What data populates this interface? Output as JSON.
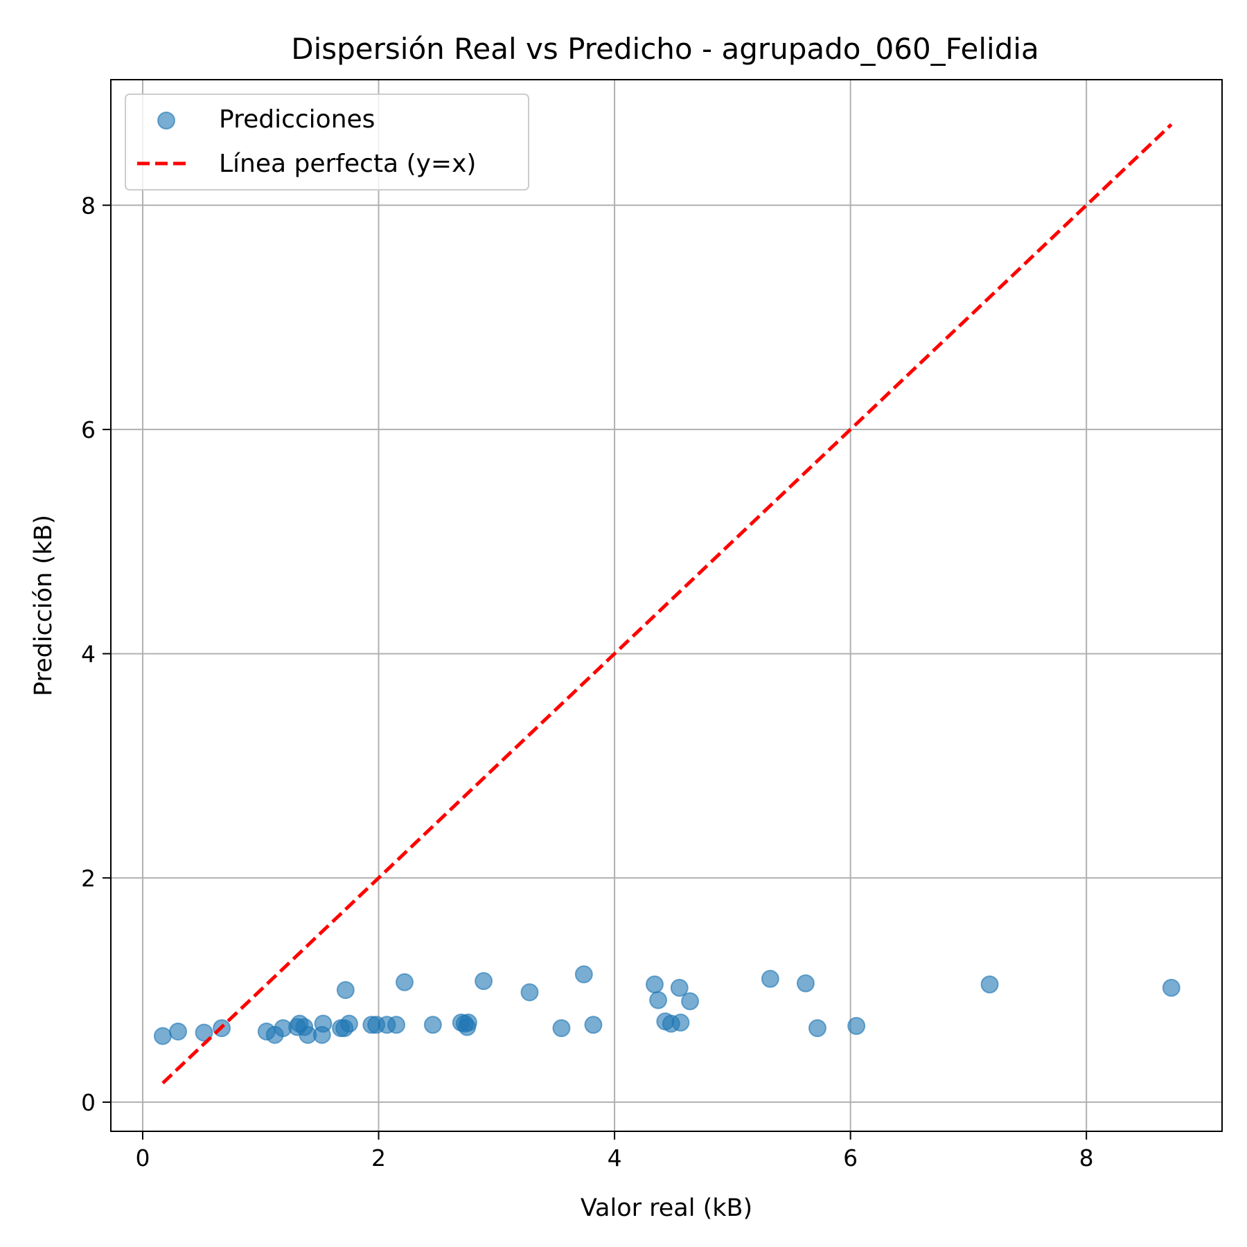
{
  "chart_data": {
    "type": "scatter",
    "title": "Dispersión Real vs Predicho - agrupado_060_Felidia",
    "xlabel": "Valor real (kB)",
    "ylabel": "Predicción (kB)",
    "xlim": [
      -0.27,
      9.15
    ],
    "ylim": [
      -0.26,
      9.12
    ],
    "xticks": [
      0,
      2,
      4,
      6,
      8
    ],
    "yticks": [
      0,
      2,
      4,
      6,
      8
    ],
    "grid": true,
    "legend_position": "top-left",
    "series": [
      {
        "name": "Predicciones",
        "kind": "scatter",
        "color": "#1f77b4",
        "alpha": 0.6,
        "points": [
          [
            0.17,
            0.59
          ],
          [
            0.3,
            0.63
          ],
          [
            0.52,
            0.62
          ],
          [
            0.67,
            0.66
          ],
          [
            1.05,
            0.63
          ],
          [
            1.12,
            0.6
          ],
          [
            1.19,
            0.66
          ],
          [
            1.31,
            0.67
          ],
          [
            1.33,
            0.7
          ],
          [
            1.37,
            0.67
          ],
          [
            1.4,
            0.6
          ],
          [
            1.52,
            0.6
          ],
          [
            1.53,
            0.7
          ],
          [
            1.68,
            0.66
          ],
          [
            1.71,
            0.66
          ],
          [
            1.72,
            1.0
          ],
          [
            1.75,
            0.7
          ],
          [
            1.94,
            0.69
          ],
          [
            1.98,
            0.69
          ],
          [
            2.07,
            0.69
          ],
          [
            2.15,
            0.69
          ],
          [
            2.22,
            1.07
          ],
          [
            2.46,
            0.69
          ],
          [
            2.7,
            0.71
          ],
          [
            2.73,
            0.7
          ],
          [
            2.75,
            0.67
          ],
          [
            2.76,
            0.71
          ],
          [
            2.89,
            1.08
          ],
          [
            3.28,
            0.98
          ],
          [
            3.55,
            0.66
          ],
          [
            3.74,
            1.14
          ],
          [
            3.82,
            0.69
          ],
          [
            4.34,
            1.05
          ],
          [
            4.37,
            0.91
          ],
          [
            4.43,
            0.72
          ],
          [
            4.48,
            0.7
          ],
          [
            4.55,
            1.02
          ],
          [
            4.56,
            0.71
          ],
          [
            4.64,
            0.9
          ],
          [
            5.32,
            1.1
          ],
          [
            5.62,
            1.06
          ],
          [
            5.72,
            0.66
          ],
          [
            6.05,
            0.68
          ],
          [
            7.18,
            1.05
          ],
          [
            8.72,
            1.02
          ]
        ]
      },
      {
        "name": "Línea perfecta (y=x)",
        "kind": "line",
        "color": "#ff0000",
        "dash": "dashed",
        "points": [
          [
            0.17,
            0.17
          ],
          [
            8.72,
            8.72
          ]
        ]
      }
    ]
  }
}
